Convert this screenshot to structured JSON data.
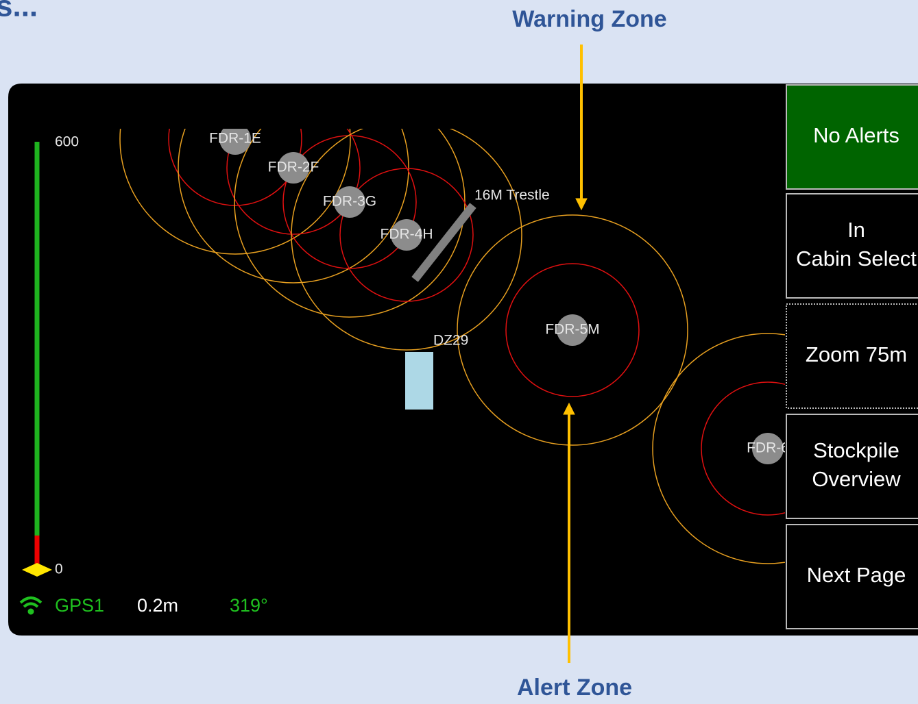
{
  "header": {
    "title": "s..."
  },
  "callouts": {
    "warning": "Warning Zone",
    "alert": "Alert Zone"
  },
  "map": {
    "labels": [
      "FDR-1E",
      "FDR-2F",
      "FDR-3G",
      "FDR-4H",
      "FDR-5M",
      "FDR-6"
    ],
    "trestle": "16M Trestle",
    "dump": "DZ29"
  },
  "gauge": {
    "top": "600",
    "bottom": "0"
  },
  "status": {
    "gps": "GPS1",
    "accuracy": "0.2m",
    "heading": "319°"
  },
  "buttons": [
    "No Alerts",
    "In Cabin Select",
    "Zoom 75m",
    "Stockpile Overview",
    "Next Page"
  ]
}
